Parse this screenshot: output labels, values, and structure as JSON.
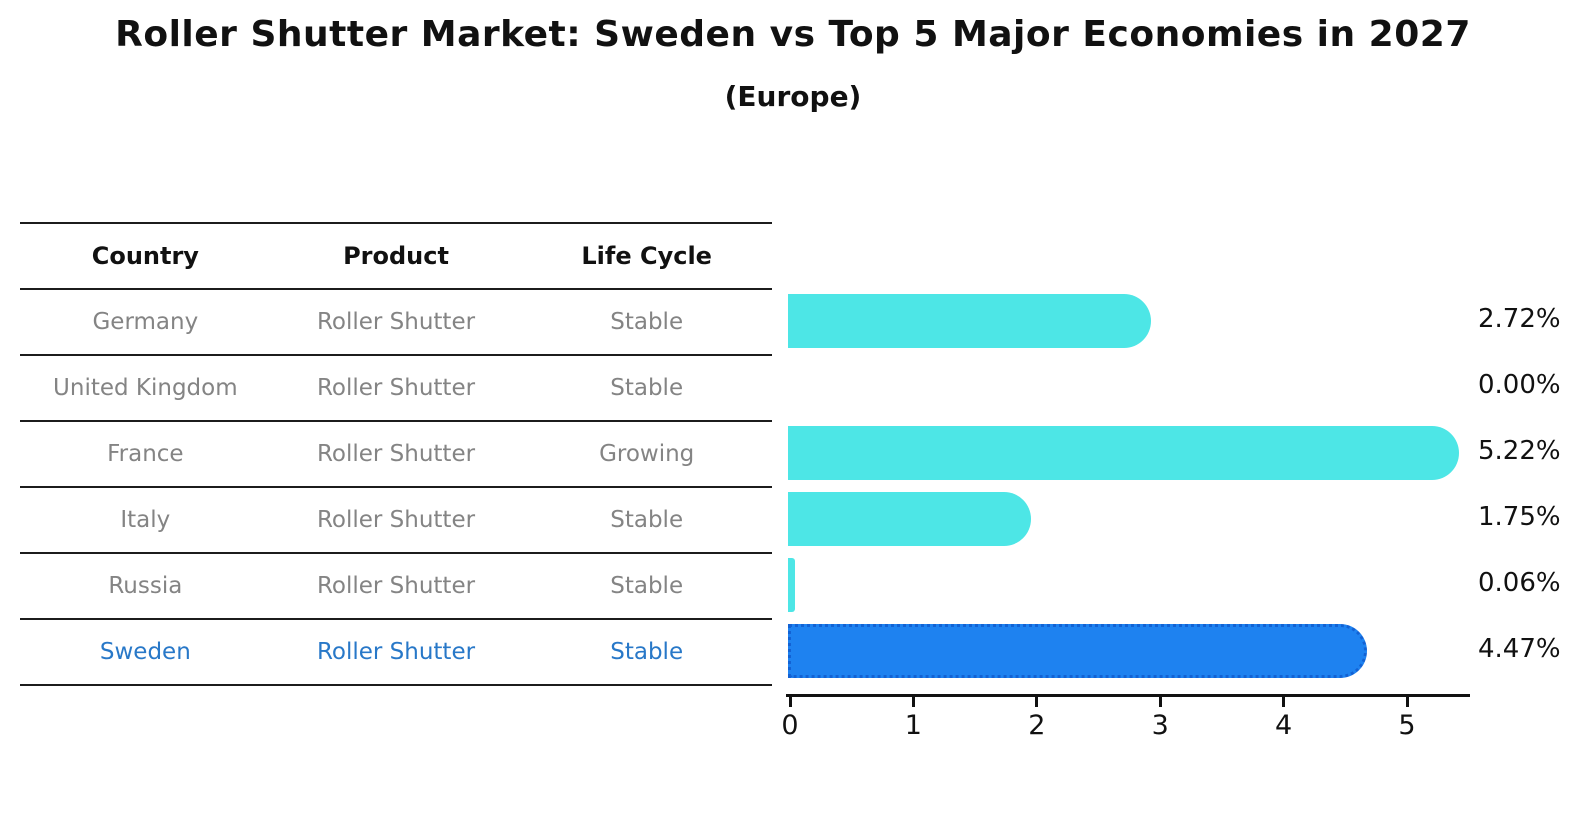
{
  "title": "Roller Shutter Market: Sweden vs Top 5 Major Economies in 2027",
  "subtitle": "(Europe)",
  "table": {
    "headers": [
      "Country",
      "Product",
      "Life Cycle"
    ],
    "rows": [
      {
        "country": "Germany",
        "product": "Roller Shutter",
        "life_cycle": "Stable",
        "highlight": false
      },
      {
        "country": "United Kingdom",
        "product": "Roller Shutter",
        "life_cycle": "Stable",
        "highlight": false
      },
      {
        "country": "France",
        "product": "Roller Shutter",
        "life_cycle": "Growing",
        "highlight": false
      },
      {
        "country": "Italy",
        "product": "Roller Shutter",
        "life_cycle": "Stable",
        "highlight": false
      },
      {
        "country": "Russia",
        "product": "Roller Shutter",
        "life_cycle": "Stable",
        "highlight": false
      },
      {
        "country": "Sweden",
        "product": "Roller Shutter",
        "life_cycle": "Stable",
        "highlight": true
      }
    ]
  },
  "chart_data": {
    "type": "bar",
    "orientation": "horizontal",
    "title": "Roller Shutter Market: Sweden vs Top 5 Major Economies in 2027",
    "subtitle": "(Europe)",
    "categories": [
      "Germany",
      "United Kingdom",
      "France",
      "Italy",
      "Russia",
      "Sweden"
    ],
    "values": [
      2.72,
      0.0,
      5.22,
      1.75,
      0.06,
      4.47
    ],
    "value_labels": [
      "2.72%",
      "0.00%",
      "5.22%",
      "1.75%",
      "0.06%",
      "4.47%"
    ],
    "x_ticks": [
      0,
      1,
      2,
      3,
      4,
      5
    ],
    "xlim": [
      0,
      5.5
    ],
    "grid": false,
    "legend": "none",
    "highlight_index": 5,
    "colors": {
      "bar": "#4de6e6",
      "highlight_bar": "#1e82f0",
      "highlight_border": "#1262d4",
      "label": "#111111",
      "table_text": "#848484",
      "highlight_text": "#2878c8",
      "line": "#1c1c1c"
    }
  }
}
